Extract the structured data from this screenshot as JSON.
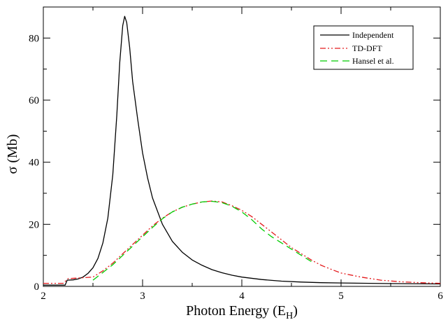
{
  "chart_data": {
    "type": "line",
    "xlabel": "Photon Energy (E",
    "xlabel_sub": "H",
    "xlabel_close": ")",
    "ylabel": "σ (Mb)",
    "xlim": [
      2,
      6
    ],
    "ylim": [
      0,
      90
    ],
    "x_ticks": [
      2,
      3,
      4,
      5,
      6
    ],
    "y_ticks": [
      0,
      20,
      40,
      60,
      80
    ],
    "grid": false,
    "legend_position": "top-right",
    "series": [
      {
        "name": "Independent",
        "color": "#000000",
        "dash": "solid",
        "points": [
          [
            2.0,
            0.4
          ],
          [
            2.22,
            0.4
          ],
          [
            2.24,
            2.0
          ],
          [
            2.3,
            2.1
          ],
          [
            2.35,
            2.4
          ],
          [
            2.4,
            3.0
          ],
          [
            2.45,
            4.2
          ],
          [
            2.5,
            6.0
          ],
          [
            2.55,
            9.0
          ],
          [
            2.6,
            14.0
          ],
          [
            2.65,
            22.0
          ],
          [
            2.7,
            36.0
          ],
          [
            2.74,
            55.0
          ],
          [
            2.77,
            72.0
          ],
          [
            2.8,
            84.0
          ],
          [
            2.82,
            87.0
          ],
          [
            2.84,
            85.0
          ],
          [
            2.87,
            77.0
          ],
          [
            2.9,
            66.0
          ],
          [
            2.95,
            54.0
          ],
          [
            3.0,
            43.0
          ],
          [
            3.05,
            35.0
          ],
          [
            3.1,
            28.5
          ],
          [
            3.2,
            20.0
          ],
          [
            3.3,
            14.5
          ],
          [
            3.4,
            11.0
          ],
          [
            3.5,
            8.5
          ],
          [
            3.6,
            6.8
          ],
          [
            3.7,
            5.4
          ],
          [
            3.8,
            4.4
          ],
          [
            3.9,
            3.6
          ],
          [
            4.0,
            3.0
          ],
          [
            4.2,
            2.2
          ],
          [
            4.4,
            1.7
          ],
          [
            4.6,
            1.4
          ],
          [
            4.8,
            1.2
          ],
          [
            5.0,
            1.1
          ],
          [
            5.5,
            0.9
          ],
          [
            6.0,
            0.8
          ]
        ]
      },
      {
        "name": "TD-DFT",
        "color": "#e41a1c",
        "dash": "8,3,2,3,2,3",
        "points": [
          [
            2.0,
            1.0
          ],
          [
            2.2,
            1.0
          ],
          [
            2.25,
            2.5
          ],
          [
            2.4,
            2.8
          ],
          [
            2.5,
            3.0
          ],
          [
            2.6,
            5.0
          ],
          [
            2.7,
            7.5
          ],
          [
            2.8,
            10.5
          ],
          [
            2.9,
            13.5
          ],
          [
            3.0,
            16.5
          ],
          [
            3.1,
            19.5
          ],
          [
            3.2,
            22.0
          ],
          [
            3.3,
            24.0
          ],
          [
            3.4,
            25.5
          ],
          [
            3.5,
            26.5
          ],
          [
            3.6,
            27.2
          ],
          [
            3.7,
            27.5
          ],
          [
            3.8,
            27.2
          ],
          [
            3.9,
            26.0
          ],
          [
            4.0,
            24.5
          ],
          [
            4.1,
            22.5
          ],
          [
            4.2,
            20.0
          ],
          [
            4.3,
            17.5
          ],
          [
            4.4,
            15.0
          ],
          [
            4.5,
            12.5
          ],
          [
            4.6,
            10.5
          ],
          [
            4.7,
            8.5
          ],
          [
            4.8,
            6.8
          ],
          [
            4.9,
            5.5
          ],
          [
            5.0,
            4.3
          ],
          [
            5.2,
            3.0
          ],
          [
            5.4,
            2.0
          ],
          [
            5.6,
            1.5
          ],
          [
            5.8,
            1.2
          ],
          [
            6.0,
            1.0
          ]
        ]
      },
      {
        "name": "Hansel et al.",
        "color": "#00cc00",
        "dash": "10,6",
        "points": [
          [
            2.5,
            2.0
          ],
          [
            2.6,
            4.5
          ],
          [
            2.7,
            7.0
          ],
          [
            2.8,
            10.0
          ],
          [
            2.9,
            13.0
          ],
          [
            3.0,
            16.0
          ],
          [
            3.1,
            19.0
          ],
          [
            3.2,
            21.8
          ],
          [
            3.3,
            24.0
          ],
          [
            3.4,
            25.5
          ],
          [
            3.5,
            26.5
          ],
          [
            3.6,
            27.2
          ],
          [
            3.7,
            27.4
          ],
          [
            3.8,
            27.0
          ],
          [
            3.9,
            25.8
          ],
          [
            4.0,
            24.0
          ],
          [
            4.1,
            21.5
          ],
          [
            4.2,
            18.5
          ],
          [
            4.3,
            16.0
          ],
          [
            4.4,
            14.0
          ],
          [
            4.5,
            12.0
          ],
          [
            4.6,
            10.0
          ],
          [
            4.7,
            8.0
          ]
        ]
      }
    ]
  }
}
